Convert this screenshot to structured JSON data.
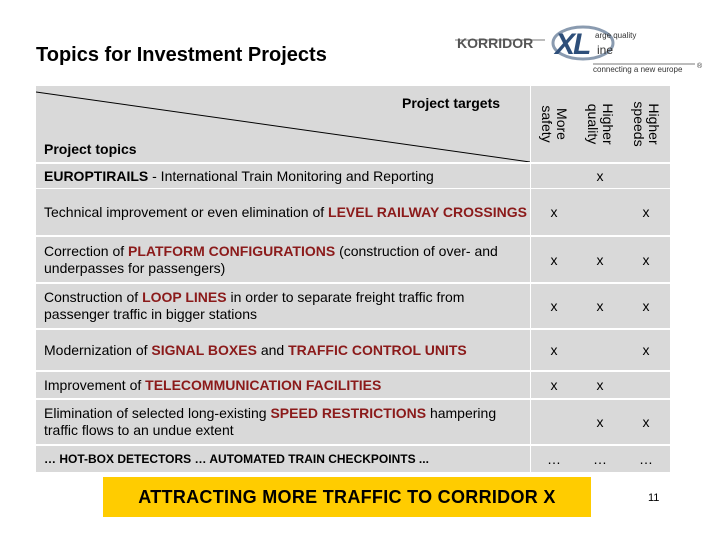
{
  "title": "Topics for Investment Projects",
  "logo": {
    "korridor": "KORRIDOR",
    "x": "X",
    "l": "L",
    "small1": "arge quality",
    "small2": "ine",
    "tagline": "connecting a new europe",
    "mark": "®"
  },
  "header": {
    "targets_label": "Project targets",
    "topics_label": "Project topics",
    "columns": [
      "More\nsafety",
      "Higher\nquality",
      "Higher\nspeeds"
    ]
  },
  "rows": [
    {
      "parts": [
        {
          "t": "EUROPTIRAILS",
          "hl": false,
          "b": true
        },
        {
          "t": " - International Train Monitoring and Reporting",
          "hl": false
        }
      ],
      "marks": [
        "",
        "x",
        ""
      ]
    },
    {
      "parts": [
        {
          "t": "Technical improvement or even elimination of ",
          "hl": false
        },
        {
          "t": "LEVEL RAILWAY CROSSINGS",
          "hl": true
        }
      ],
      "marks": [
        "x",
        "",
        "x"
      ]
    },
    {
      "parts": [
        {
          "t": "Correction of ",
          "hl": false
        },
        {
          "t": "PLATFORM CONFIGURATIONS",
          "hl": true
        },
        {
          "t": " (construction of over- and underpasses for passengers)",
          "hl": false
        }
      ],
      "marks": [
        "x",
        "x",
        "x"
      ]
    },
    {
      "parts": [
        {
          "t": "Construction of ",
          "hl": false
        },
        {
          "t": "LOOP LINES",
          "hl": true
        },
        {
          "t": " in order to separate freight traffic from passenger traffic in bigger stations",
          "hl": false
        }
      ],
      "marks": [
        "x",
        "x",
        "x"
      ]
    },
    {
      "parts": [
        {
          "t": "Modernization of ",
          "hl": false
        },
        {
          "t": "SIGNAL BOXES",
          "hl": true
        },
        {
          "t": " and ",
          "hl": false
        },
        {
          "t": "TRAFFIC CONTROL UNITS",
          "hl": true
        }
      ],
      "marks": [
        "x",
        "",
        "x"
      ]
    },
    {
      "parts": [
        {
          "t": "Improvement of ",
          "hl": false
        },
        {
          "t": "TELECOMMUNICATION FACILITIES",
          "hl": true
        }
      ],
      "marks": [
        "x",
        "x",
        ""
      ]
    },
    {
      "parts": [
        {
          "t": "Elimination of selected long-existing ",
          "hl": false
        },
        {
          "t": "SPEED RESTRICTIONS",
          "hl": true
        },
        {
          "t": " hampering traffic flows to an undue extent",
          "hl": false
        }
      ],
      "marks": [
        "",
        "x",
        "x"
      ]
    },
    {
      "parts": [
        {
          "t": "… HOT-BOX DETECTORS … AUTOMATED TRAIN CHECKPOINTS ...",
          "hl": false,
          "b": true,
          "small": true
        }
      ],
      "marks": [
        "…",
        "…",
        "…"
      ]
    }
  ],
  "banner": "ATTRACTING MORE TRAFFIC TO CORRIDOR X",
  "page_number": "11"
}
